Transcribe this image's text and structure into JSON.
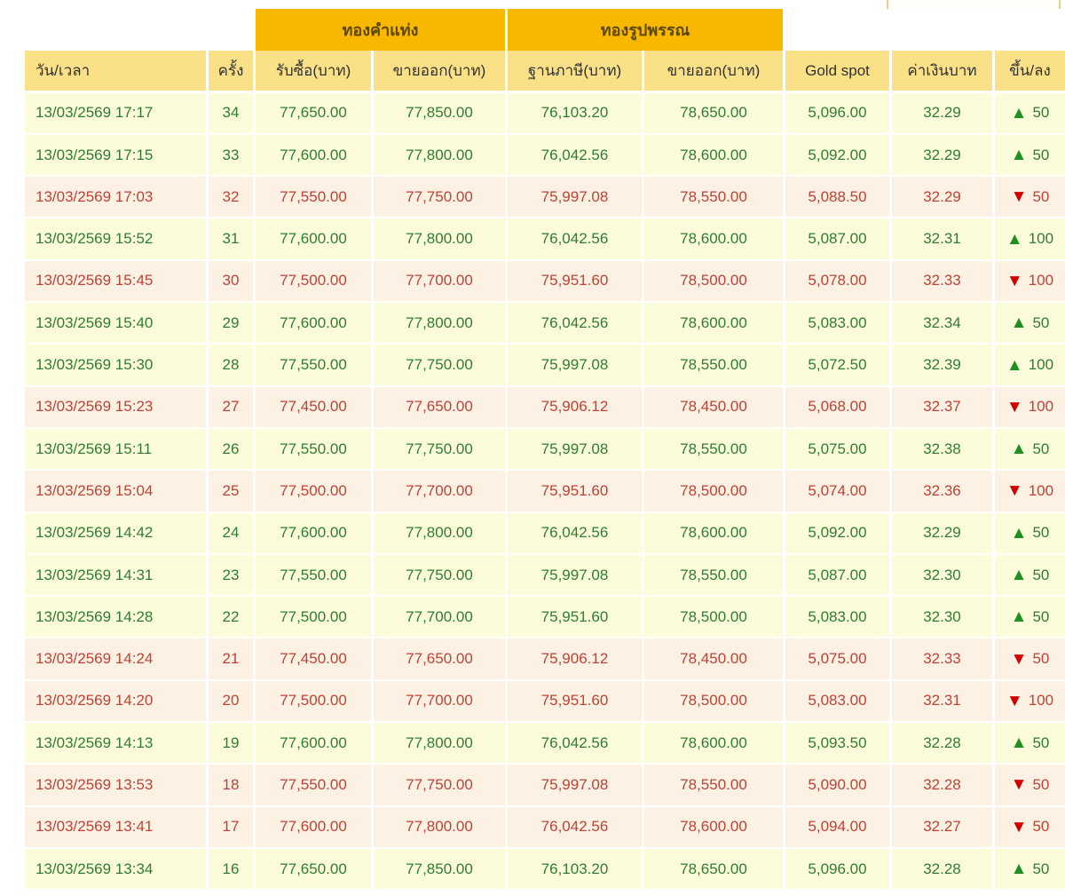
{
  "widget": {
    "share_button": {
      "icon": "share-icon"
    }
  },
  "icons": {
    "up": "▲",
    "down": "▼"
  },
  "colors": {
    "band_bg": "#f8b800",
    "header_bg": "#fae187",
    "up_row_bg": "#fcfcdb",
    "down_row_bg": "#fdf1e3",
    "up_text": "#2f7d31",
    "down_text": "#be4236",
    "up_arrow": "#1f8f1f",
    "down_arrow": "#d00000"
  },
  "table": {
    "group_headers": [
      {
        "label": "ทองคำแท่ง"
      },
      {
        "label": "ทองรูปพรรณ"
      }
    ],
    "columns": [
      "วัน/เวลา",
      "ครั้ง",
      "รับซื้อ(บาท)",
      "ขายออก(บาท)",
      "ฐานภาษี(บาท)",
      "ขายออก(บาท)",
      "Gold spot",
      "ค่าเงินบาท",
      "ขึ้น/ลง"
    ],
    "rows": [
      {
        "datetime": "13/03/2569 17:17",
        "round": "34",
        "bar_buy": "77,650.00",
        "bar_sell": "77,850.00",
        "orn_tax": "76,103.20",
        "orn_sell": "78,650.00",
        "gold_spot": "5,096.00",
        "baht": "32.29",
        "direction": "up",
        "change": "50"
      },
      {
        "datetime": "13/03/2569 17:15",
        "round": "33",
        "bar_buy": "77,600.00",
        "bar_sell": "77,800.00",
        "orn_tax": "76,042.56",
        "orn_sell": "78,600.00",
        "gold_spot": "5,092.00",
        "baht": "32.29",
        "direction": "up",
        "change": "50"
      },
      {
        "datetime": "13/03/2569 17:03",
        "round": "32",
        "bar_buy": "77,550.00",
        "bar_sell": "77,750.00",
        "orn_tax": "75,997.08",
        "orn_sell": "78,550.00",
        "gold_spot": "5,088.50",
        "baht": "32.29",
        "direction": "down",
        "change": "50"
      },
      {
        "datetime": "13/03/2569 15:52",
        "round": "31",
        "bar_buy": "77,600.00",
        "bar_sell": "77,800.00",
        "orn_tax": "76,042.56",
        "orn_sell": "78,600.00",
        "gold_spot": "5,087.00",
        "baht": "32.31",
        "direction": "up",
        "change": "100"
      },
      {
        "datetime": "13/03/2569 15:45",
        "round": "30",
        "bar_buy": "77,500.00",
        "bar_sell": "77,700.00",
        "orn_tax": "75,951.60",
        "orn_sell": "78,500.00",
        "gold_spot": "5,078.00",
        "baht": "32.33",
        "direction": "down",
        "change": "100"
      },
      {
        "datetime": "13/03/2569 15:40",
        "round": "29",
        "bar_buy": "77,600.00",
        "bar_sell": "77,800.00",
        "orn_tax": "76,042.56",
        "orn_sell": "78,600.00",
        "gold_spot": "5,083.00",
        "baht": "32.34",
        "direction": "up",
        "change": "50"
      },
      {
        "datetime": "13/03/2569 15:30",
        "round": "28",
        "bar_buy": "77,550.00",
        "bar_sell": "77,750.00",
        "orn_tax": "75,997.08",
        "orn_sell": "78,550.00",
        "gold_spot": "5,072.50",
        "baht": "32.39",
        "direction": "up",
        "change": "100"
      },
      {
        "datetime": "13/03/2569 15:23",
        "round": "27",
        "bar_buy": "77,450.00",
        "bar_sell": "77,650.00",
        "orn_tax": "75,906.12",
        "orn_sell": "78,450.00",
        "gold_spot": "5,068.00",
        "baht": "32.37",
        "direction": "down",
        "change": "100"
      },
      {
        "datetime": "13/03/2569 15:11",
        "round": "26",
        "bar_buy": "77,550.00",
        "bar_sell": "77,750.00",
        "orn_tax": "75,997.08",
        "orn_sell": "78,550.00",
        "gold_spot": "5,075.00",
        "baht": "32.38",
        "direction": "up",
        "change": "50"
      },
      {
        "datetime": "13/03/2569 15:04",
        "round": "25",
        "bar_buy": "77,500.00",
        "bar_sell": "77,700.00",
        "orn_tax": "75,951.60",
        "orn_sell": "78,500.00",
        "gold_spot": "5,074.00",
        "baht": "32.36",
        "direction": "down",
        "change": "100"
      },
      {
        "datetime": "13/03/2569 14:42",
        "round": "24",
        "bar_buy": "77,600.00",
        "bar_sell": "77,800.00",
        "orn_tax": "76,042.56",
        "orn_sell": "78,600.00",
        "gold_spot": "5,092.00",
        "baht": "32.29",
        "direction": "up",
        "change": "50"
      },
      {
        "datetime": "13/03/2569 14:31",
        "round": "23",
        "bar_buy": "77,550.00",
        "bar_sell": "77,750.00",
        "orn_tax": "75,997.08",
        "orn_sell": "78,550.00",
        "gold_spot": "5,087.00",
        "baht": "32.30",
        "direction": "up",
        "change": "50"
      },
      {
        "datetime": "13/03/2569 14:28",
        "round": "22",
        "bar_buy": "77,500.00",
        "bar_sell": "77,700.00",
        "orn_tax": "75,951.60",
        "orn_sell": "78,500.00",
        "gold_spot": "5,083.00",
        "baht": "32.30",
        "direction": "up",
        "change": "50"
      },
      {
        "datetime": "13/03/2569 14:24",
        "round": "21",
        "bar_buy": "77,450.00",
        "bar_sell": "77,650.00",
        "orn_tax": "75,906.12",
        "orn_sell": "78,450.00",
        "gold_spot": "5,075.00",
        "baht": "32.33",
        "direction": "down",
        "change": "50"
      },
      {
        "datetime": "13/03/2569 14:20",
        "round": "20",
        "bar_buy": "77,500.00",
        "bar_sell": "77,700.00",
        "orn_tax": "75,951.60",
        "orn_sell": "78,500.00",
        "gold_spot": "5,083.00",
        "baht": "32.31",
        "direction": "down",
        "change": "100"
      },
      {
        "datetime": "13/03/2569 14:13",
        "round": "19",
        "bar_buy": "77,600.00",
        "bar_sell": "77,800.00",
        "orn_tax": "76,042.56",
        "orn_sell": "78,600.00",
        "gold_spot": "5,093.50",
        "baht": "32.28",
        "direction": "up",
        "change": "50"
      },
      {
        "datetime": "13/03/2569 13:53",
        "round": "18",
        "bar_buy": "77,550.00",
        "bar_sell": "77,750.00",
        "orn_tax": "75,997.08",
        "orn_sell": "78,550.00",
        "gold_spot": "5,090.00",
        "baht": "32.28",
        "direction": "down",
        "change": "50"
      },
      {
        "datetime": "13/03/2569 13:41",
        "round": "17",
        "bar_buy": "77,600.00",
        "bar_sell": "77,800.00",
        "orn_tax": "76,042.56",
        "orn_sell": "78,600.00",
        "gold_spot": "5,094.00",
        "baht": "32.27",
        "direction": "down",
        "change": "50"
      },
      {
        "datetime": "13/03/2569 13:34",
        "round": "16",
        "bar_buy": "77,650.00",
        "bar_sell": "77,850.00",
        "orn_tax": "76,103.20",
        "orn_sell": "78,650.00",
        "gold_spot": "5,096.00",
        "baht": "32.28",
        "direction": "up",
        "change": "50"
      }
    ]
  }
}
